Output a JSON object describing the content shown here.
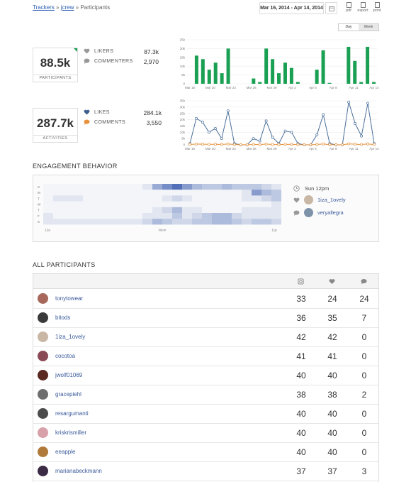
{
  "breadcrumb": {
    "trackers": "Trackers",
    "sep1": " » ",
    "account": "jcrew",
    "sep2": " » ",
    "page": "Participants"
  },
  "date_range": "Mar 16, 2014 - Apr 14, 2014",
  "tools": [
    {
      "label": "pdf"
    },
    {
      "label": "export"
    },
    {
      "label": "print"
    }
  ],
  "granularity": {
    "day": "Day",
    "week": "Week"
  },
  "participants": {
    "value": "88.5k",
    "label": "PARTICIPANTS",
    "likers_label": "LIKERS",
    "likers": "87.3k",
    "commenters_label": "COMMENTERS",
    "commenters": "2,970"
  },
  "activities": {
    "value": "287.7k",
    "label": "ACTIVITIES",
    "likes_label": "LIKES",
    "likes": "284.1k",
    "comments_label": "COMMENTS",
    "comments": "3,550"
  },
  "chart_data": [
    {
      "type": "bar",
      "x_ticks": [
        "Mar 16",
        "Mar 20",
        "Mar 23",
        "Mar 26",
        "Mar 29",
        "Apr 2",
        "Apr 5",
        "Apr 8",
        "Apr 11",
        "Apr 14"
      ],
      "y_ticks": [
        "0",
        "5k",
        "10k",
        "15k",
        "20k",
        "25k"
      ],
      "ylim": [
        0,
        25000
      ],
      "color": "#1aa053",
      "values": [
        0,
        16000,
        14000,
        8000,
        12000,
        6000,
        20000,
        0,
        0,
        0,
        3000,
        1000,
        20000,
        14000,
        6000,
        12000,
        9000,
        1000,
        0,
        0,
        8000,
        19000,
        500,
        0,
        0,
        21000,
        13000,
        1000,
        21000,
        1000
      ]
    },
    {
      "type": "line",
      "x_ticks": [
        "Mar 16",
        "Mar 20",
        "Mar 23",
        "Mar 26",
        "Mar 29",
        "Apr 2",
        "Apr 5",
        "Apr 8",
        "Apr 11",
        "Apr 14"
      ],
      "y_ticks": [
        "0",
        "5k",
        "10k",
        "15k",
        "20k",
        "25k",
        "30k",
        "35k"
      ],
      "ylim": [
        0,
        35000
      ],
      "series": [
        {
          "color": "#4a6f9a",
          "values": [
            1000,
            21000,
            18000,
            10000,
            13000,
            5000,
            27000,
            1000,
            0,
            0,
            5000,
            3000,
            19000,
            6000,
            1000,
            11000,
            10000,
            1000,
            0,
            0,
            8000,
            24000,
            1000,
            0,
            0,
            34000,
            17000,
            7000,
            33000,
            1000
          ]
        },
        {
          "color": "#e8913a",
          "values": [
            300,
            600,
            500,
            400,
            450,
            300,
            700,
            200,
            100,
            100,
            300,
            200,
            600,
            300,
            150,
            400,
            350,
            150,
            100,
            100,
            300,
            700,
            150,
            100,
            100,
            800,
            500,
            250,
            700,
            200
          ]
        }
      ]
    },
    {
      "type": "heatmap",
      "rows": [
        "S",
        "M",
        "T",
        "W",
        "T",
        "F",
        "S"
      ],
      "x_ticks": [
        "12a",
        "Noon",
        "11p"
      ],
      "values": [
        [
          0,
          0,
          0,
          0,
          0,
          0,
          0,
          0,
          0,
          0,
          1,
          5,
          7,
          9,
          6,
          4,
          3,
          3,
          4,
          3,
          3,
          3,
          2,
          1
        ],
        [
          0,
          0,
          0,
          0,
          0,
          0,
          0,
          0,
          0,
          0,
          0,
          0,
          0,
          0,
          0,
          0,
          0,
          0,
          0,
          0,
          1,
          6,
          4,
          3
        ],
        [
          0,
          1,
          1,
          1,
          0,
          0,
          0,
          0,
          0,
          0,
          0,
          0,
          1,
          2,
          1,
          0,
          0,
          0,
          0,
          0,
          1,
          1,
          2,
          3
        ],
        [
          0,
          0,
          0,
          0,
          0,
          0,
          0,
          0,
          0,
          0,
          0,
          0,
          0,
          0,
          0,
          0,
          0,
          0,
          0,
          0,
          0,
          0,
          0,
          1
        ],
        [
          0,
          0,
          0,
          0,
          0,
          0,
          0,
          0,
          0,
          0,
          0,
          1,
          2,
          4,
          1,
          1,
          0,
          0,
          0,
          0,
          1,
          1,
          1,
          1
        ],
        [
          1,
          0,
          0,
          0,
          0,
          0,
          0,
          0,
          0,
          0,
          1,
          1,
          1,
          3,
          1,
          2,
          3,
          4,
          4,
          2,
          1,
          1,
          1,
          1
        ],
        [
          1,
          1,
          1,
          1,
          1,
          1,
          1,
          1,
          1,
          1,
          2,
          4,
          3,
          2,
          2,
          3,
          3,
          4,
          4,
          3,
          2,
          3,
          3,
          2
        ]
      ]
    }
  ],
  "engagement": {
    "title": "ENGAGEMENT BEHAVIOR",
    "peak_time": "Sun 12pm",
    "top_liker": "1iza_1ovely",
    "top_commenter": "veryallegra"
  },
  "all_participants": {
    "title": "ALL PARTICIPANTS",
    "rows": [
      {
        "name": "tonytowear",
        "posts": "33",
        "likes": "24",
        "comments": "24",
        "avatar": "#a7675a"
      },
      {
        "name": "bitods",
        "posts": "36",
        "likes": "35",
        "comments": "7",
        "avatar": "#3a3a3a"
      },
      {
        "name": "1iza_1ovely",
        "posts": "42",
        "likes": "42",
        "comments": "0",
        "avatar": "#c9b7a6"
      },
      {
        "name": "cocotoa",
        "posts": "41",
        "likes": "41",
        "comments": "0",
        "avatar": "#8a4a55"
      },
      {
        "name": "jwolf01069",
        "posts": "40",
        "likes": "40",
        "comments": "0",
        "avatar": "#5a2820"
      },
      {
        "name": "gracepiehl",
        "posts": "38",
        "likes": "38",
        "comments": "2",
        "avatar": "#6e6e6e"
      },
      {
        "name": "resargumanti",
        "posts": "40",
        "likes": "40",
        "comments": "0",
        "avatar": "#4b4b4b"
      },
      {
        "name": "kriskrismiller",
        "posts": "40",
        "likes": "40",
        "comments": "0",
        "avatar": "#d8a0a8"
      },
      {
        "name": "eeapple",
        "posts": "40",
        "likes": "40",
        "comments": "0",
        "avatar": "#b07a3a"
      },
      {
        "name": "marianabeckmann",
        "posts": "37",
        "likes": "37",
        "comments": "3",
        "avatar": "#3a2a44"
      }
    ]
  }
}
